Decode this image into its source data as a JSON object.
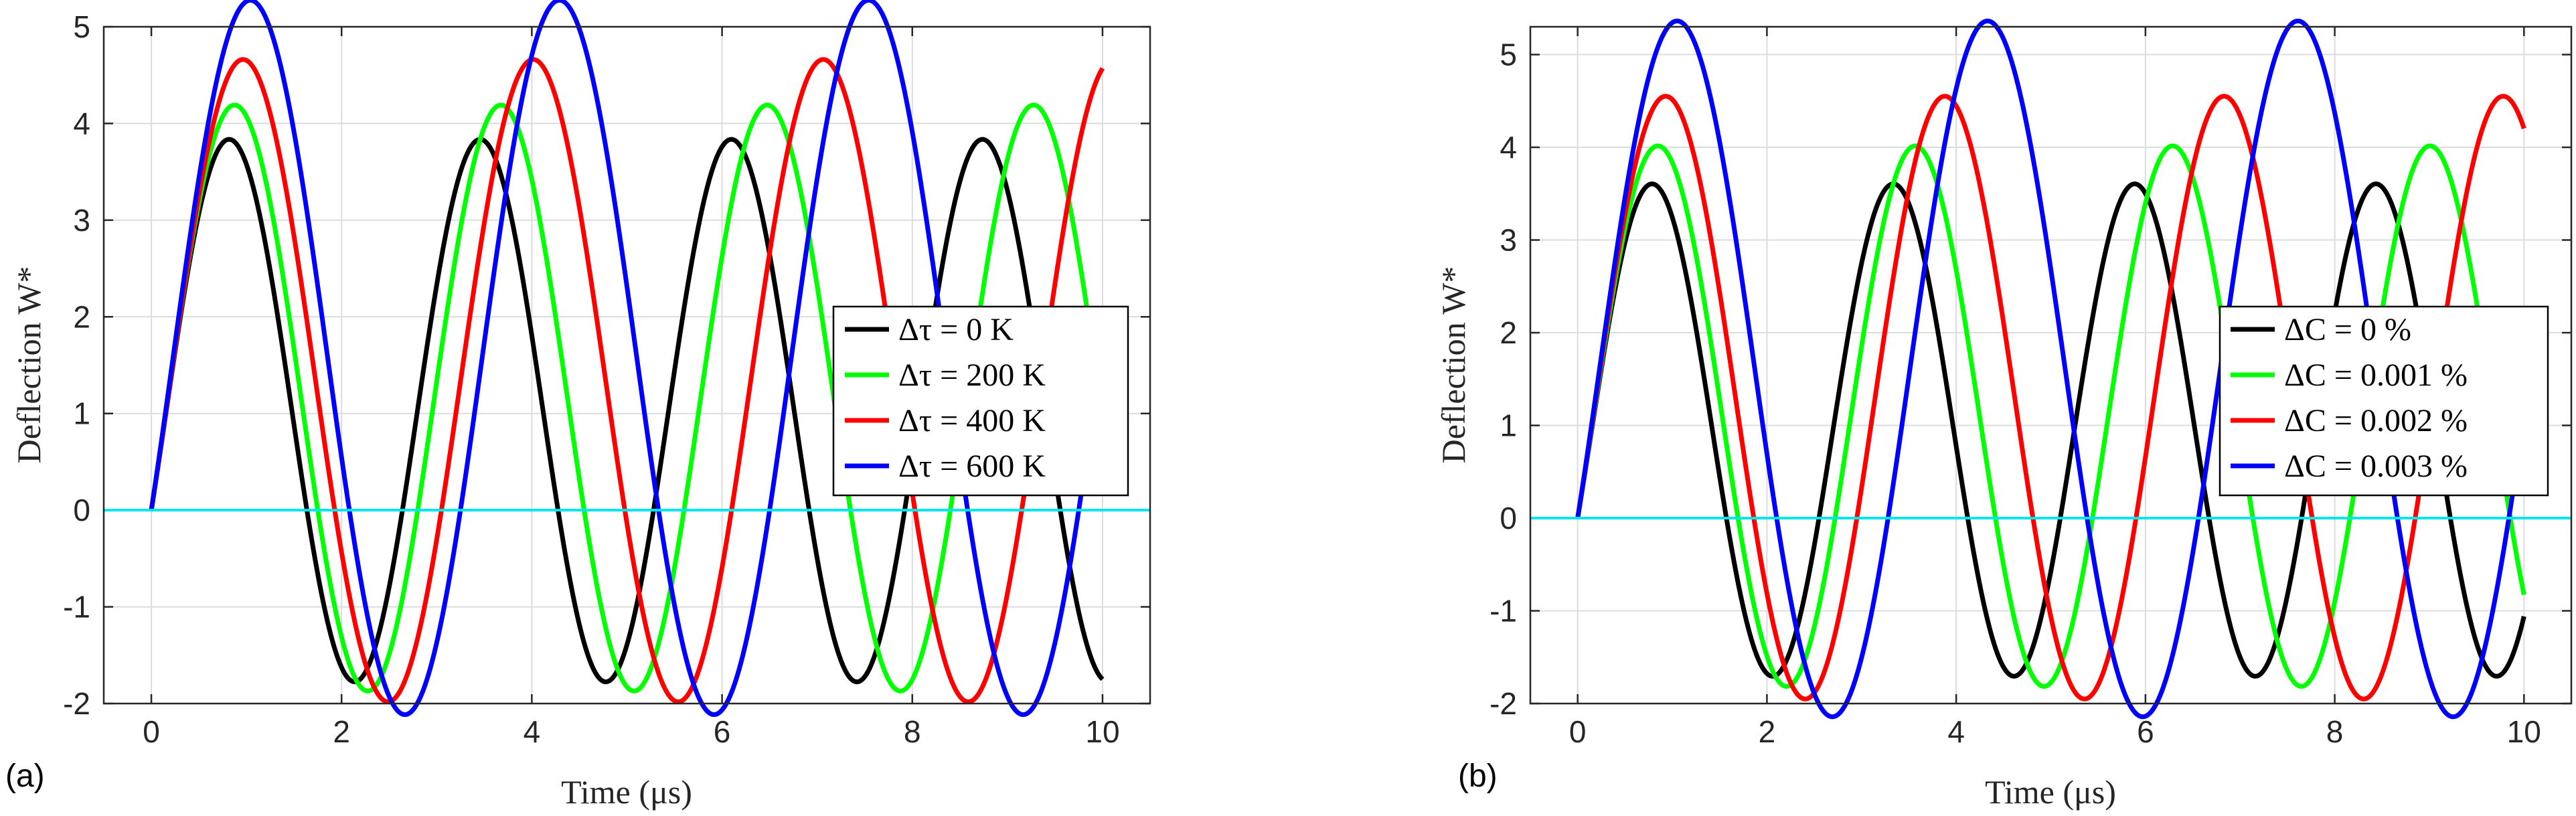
{
  "chart_data": [
    {
      "type": "line",
      "panel_label": "(a)",
      "xlabel": "Time (μs)",
      "ylabel": "Deflection W*",
      "xlim": [
        -0.5,
        10.5
      ],
      "ylim": [
        -2,
        5
      ],
      "xticks": [
        0,
        2,
        4,
        6,
        8,
        10
      ],
      "yticks": [
        -2,
        -1,
        0,
        1,
        2,
        3,
        4,
        5
      ],
      "grid": true,
      "legend_position": "right-middle",
      "baseline": {
        "name": "zero line",
        "y": 0,
        "color": "#00e5ee"
      },
      "series": [
        {
          "name": "Δτ = 0 K",
          "color": "#000000",
          "amplitude_mid": 1.03,
          "amplitude_half": 2.61,
          "period": 2.64
        },
        {
          "name": "Δτ = 200 K",
          "color": "#00ff00",
          "amplitude_mid": 1.16,
          "amplitude_half": 2.8,
          "period": 2.8
        },
        {
          "name": "Δτ = 400 K",
          "color": "#ff0000",
          "amplitude_mid": 1.34,
          "amplitude_half": 3.04,
          "period": 3.05
        },
        {
          "name": "Δτ = 600 K",
          "color": "#0000ff",
          "amplitude_mid": 1.58,
          "amplitude_half": 3.34,
          "period": 3.25
        }
      ]
    },
    {
      "type": "line",
      "panel_label": "(b)",
      "xlabel": "Time (μs)",
      "ylabel": "Deflection W*",
      "xlim": [
        -0.5,
        10.5
      ],
      "ylim": [
        -2,
        5.3
      ],
      "xticks": [
        0,
        2,
        4,
        6,
        8,
        10
      ],
      "yticks": [
        -2,
        -1,
        0,
        1,
        2,
        3,
        4,
        5
      ],
      "grid": true,
      "legend_position": "right-middle",
      "baseline": {
        "name": "zero line",
        "y": 0,
        "color": "#00e5ee"
      },
      "series": [
        {
          "name": "ΔC = 0 %",
          "color": "#000000",
          "amplitude_mid": 0.95,
          "amplitude_half": 2.48,
          "period": 2.55
        },
        {
          "name": "ΔC = 0.001 %",
          "color": "#00ff00",
          "amplitude_mid": 1.1,
          "amplitude_half": 2.7,
          "period": 2.72
        },
        {
          "name": "ΔC = 0.002 %",
          "color": "#ff0000",
          "amplitude_mid": 1.3,
          "amplitude_half": 2.98,
          "period": 2.95
        },
        {
          "name": "ΔC = 0.003 %",
          "color": "#0000ff",
          "amplitude_mid": 1.61,
          "amplitude_half": 3.39,
          "period": 3.28
        }
      ]
    }
  ]
}
